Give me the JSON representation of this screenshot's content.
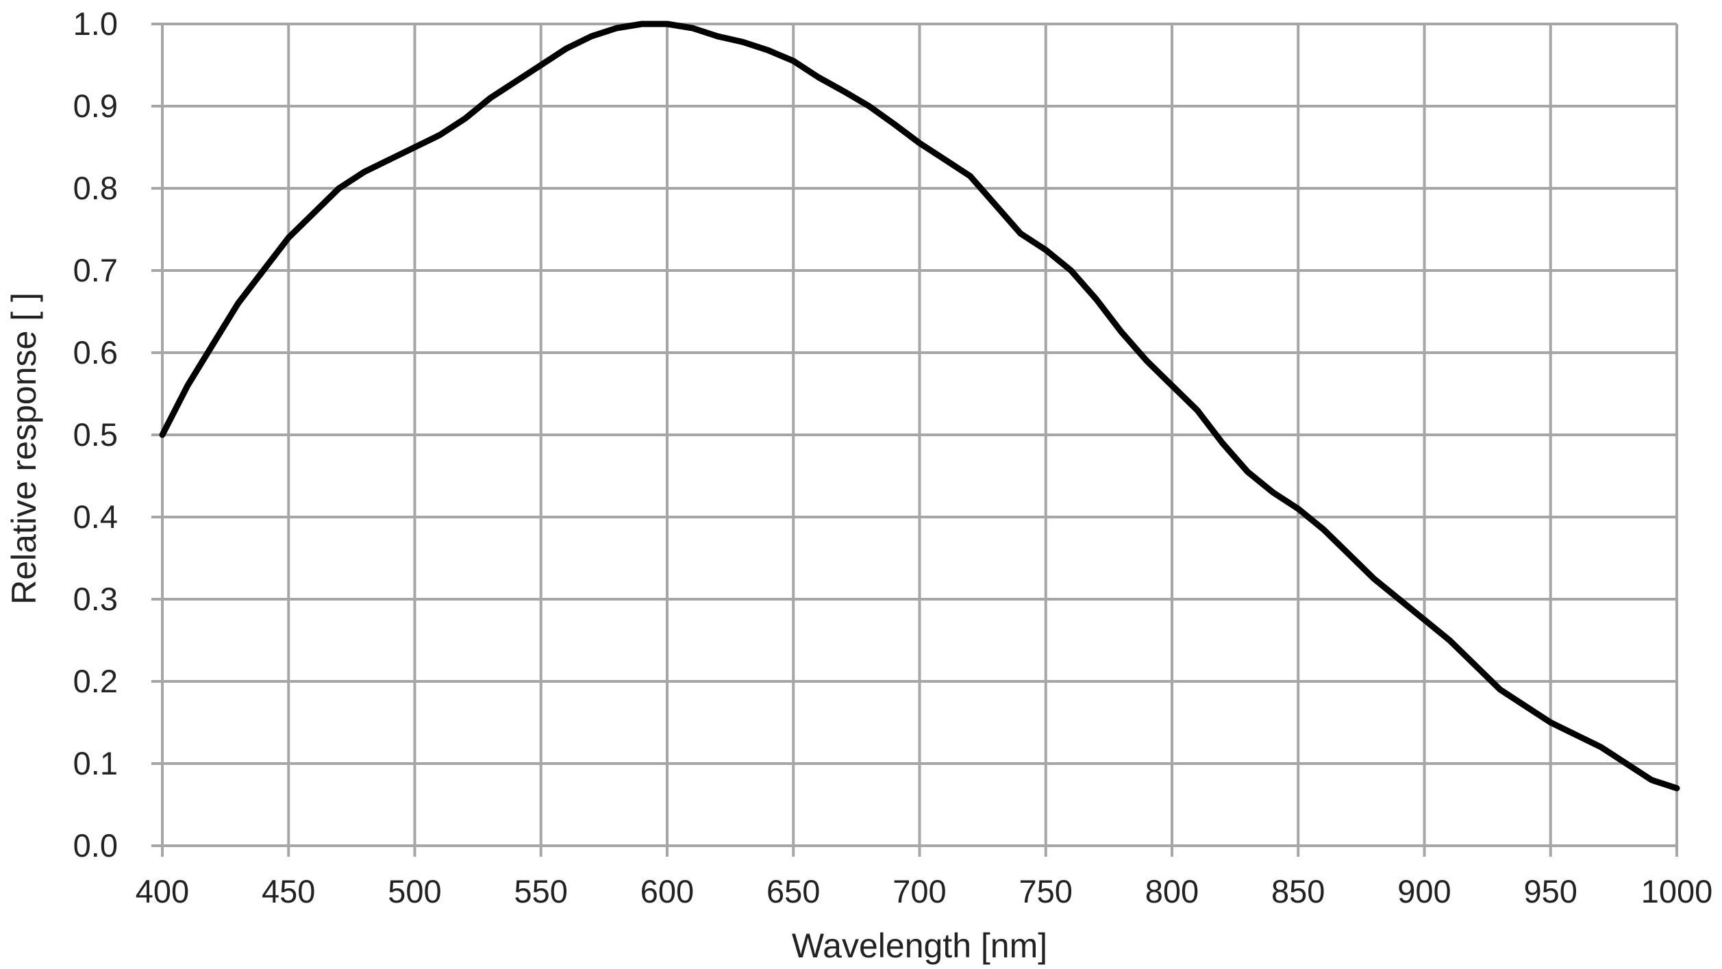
{
  "chart_data": {
    "type": "line",
    "title": "",
    "xlabel": "Wavelength [nm]",
    "ylabel": "Relative response [ ]",
    "xlim": [
      400,
      1000
    ],
    "ylim": [
      0,
      1.0
    ],
    "x_ticks": [
      400,
      450,
      500,
      550,
      600,
      650,
      700,
      750,
      800,
      850,
      900,
      950,
      1000
    ],
    "x_tick_labels": [
      "400",
      "450",
      "500",
      "550",
      "600",
      "650",
      "700",
      "750",
      "800",
      "850",
      "900",
      "950",
      "1000"
    ],
    "y_ticks": [
      0,
      0.1,
      0.2,
      0.3,
      0.4,
      0.5,
      0.6,
      0.7,
      0.8,
      0.9,
      1.0
    ],
    "y_tick_labels": [
      "0.0",
      "0.1",
      "0.2",
      "0.3",
      "0.4",
      "0.5",
      "0.6",
      "0.7",
      "0.8",
      "0.9",
      "1.0"
    ],
    "grid": true,
    "legend": "none",
    "series": [
      {
        "color": "#000000",
        "x": [
          400,
          410,
          420,
          430,
          440,
          450,
          460,
          470,
          480,
          490,
          500,
          510,
          520,
          530,
          540,
          550,
          560,
          570,
          580,
          590,
          600,
          610,
          620,
          630,
          640,
          650,
          660,
          670,
          680,
          690,
          700,
          710,
          720,
          730,
          740,
          750,
          760,
          770,
          780,
          790,
          800,
          810,
          820,
          830,
          840,
          850,
          860,
          870,
          880,
          890,
          900,
          910,
          920,
          930,
          940,
          950,
          960,
          970,
          980,
          990,
          1000
        ],
        "y": [
          0.5,
          0.56,
          0.61,
          0.66,
          0.7,
          0.74,
          0.77,
          0.8,
          0.82,
          0.835,
          0.85,
          0.865,
          0.885,
          0.91,
          0.93,
          0.95,
          0.97,
          0.985,
          0.995,
          1.0,
          1.0,
          0.995,
          0.985,
          0.978,
          0.968,
          0.955,
          0.935,
          0.918,
          0.9,
          0.878,
          0.855,
          0.835,
          0.815,
          0.78,
          0.745,
          0.725,
          0.7,
          0.665,
          0.625,
          0.59,
          0.56,
          0.53,
          0.49,
          0.455,
          0.43,
          0.41,
          0.385,
          0.355,
          0.325,
          0.3,
          0.275,
          0.25,
          0.22,
          0.19,
          0.17,
          0.15,
          0.135,
          0.12,
          0.1,
          0.08,
          0.07
        ]
      }
    ]
  }
}
